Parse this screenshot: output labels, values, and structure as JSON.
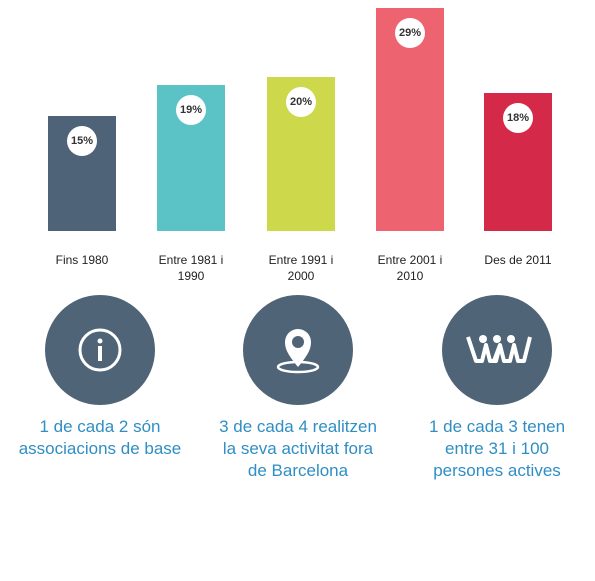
{
  "chart_data": {
    "type": "bar",
    "categories": [
      "Fins 1980",
      "Entre 1981 i 1990",
      "Entre 1991 i 2000",
      "Entre 2001 i 2010",
      "Des de 2011"
    ],
    "values": [
      15,
      19,
      20,
      29,
      18
    ],
    "value_labels": [
      "15%",
      "19%",
      "20%",
      "29%",
      "18%"
    ],
    "colors": [
      "#4e6378",
      "#5bc3c5",
      "#cdd94a",
      "#ee6370",
      "#d5294a"
    ]
  },
  "stats": [
    {
      "text": "1 de cada 2 són associacions de base"
    },
    {
      "text": "3 de cada 4 realitzen la seva activitat fora de Barcelona"
    },
    {
      "text": "1 de cada 3 tenen entre 31 i 100 persones actives"
    }
  ]
}
